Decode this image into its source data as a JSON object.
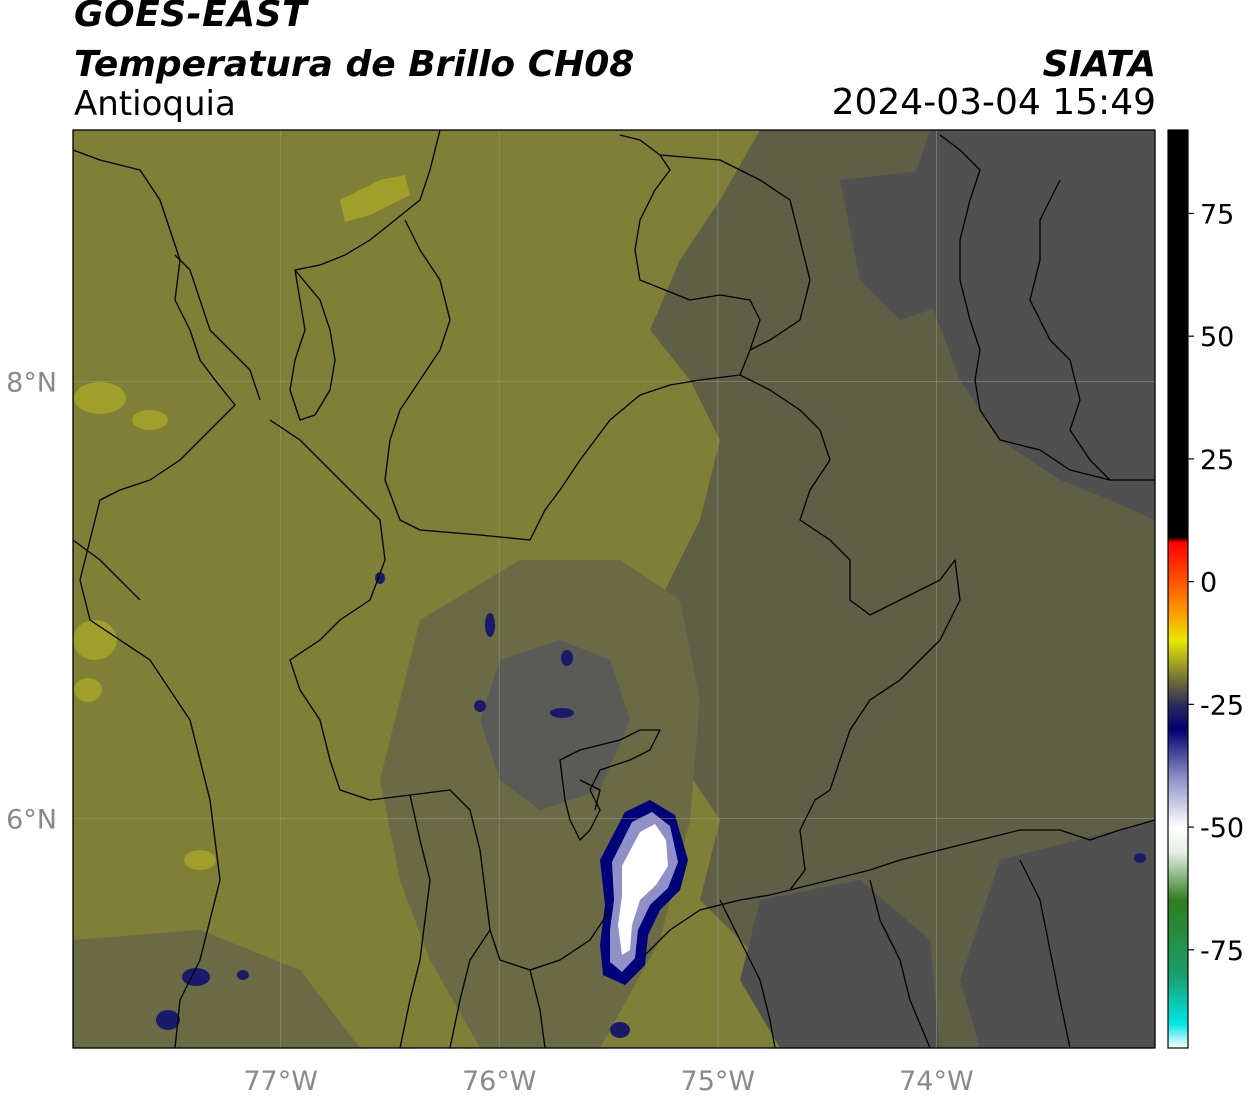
{
  "header": {
    "satellite": "GOES-EAST",
    "product": "Temperatura de Brillo CH08",
    "region": "Antioquia",
    "organization": "SIATA",
    "timestamp": "2024-03-04 15:49"
  },
  "map": {
    "lon_range": [
      -77.95,
      -73.0
    ],
    "lat_range": [
      4.95,
      9.15
    ],
    "lon_ticks": [
      {
        "value": -77,
        "label": "77°W"
      },
      {
        "value": -76,
        "label": "76°W"
      },
      {
        "value": -75,
        "label": "75°W"
      },
      {
        "value": -74,
        "label": "74°W"
      }
    ],
    "lat_ticks": [
      {
        "value": 8,
        "label": "8°N"
      },
      {
        "value": 6,
        "label": "6°N"
      }
    ],
    "gridlines": true,
    "colors": {
      "background_field": "#7f7f33",
      "bright_field": "#9d9d2c",
      "dark_field": "#555555",
      "cold_core": "#00007a",
      "coldest": "#ffffff",
      "boundary": "#000000"
    }
  },
  "colorbar": {
    "range": [
      -95,
      92
    ],
    "ticks": [
      {
        "value": 75,
        "label": "75"
      },
      {
        "value": 50,
        "label": "50"
      },
      {
        "value": 25,
        "label": "25"
      },
      {
        "value": 0,
        "label": "0"
      },
      {
        "value": -25,
        "label": "-25"
      },
      {
        "value": -50,
        "label": "-50"
      },
      {
        "value": -75,
        "label": "-75"
      }
    ],
    "stops": [
      {
        "value": -95,
        "color": "#ffffff"
      },
      {
        "value": -90,
        "color": "#00e5e5"
      },
      {
        "value": -80,
        "color": "#1a9e6a"
      },
      {
        "value": -65,
        "color": "#2f7d1f"
      },
      {
        "value": -55,
        "color": "#e8f0e8"
      },
      {
        "value": -50,
        "color": "#ffffff"
      },
      {
        "value": -40,
        "color": "#8f90c8"
      },
      {
        "value": -30,
        "color": "#000070"
      },
      {
        "value": -25,
        "color": "#2c2c5c"
      },
      {
        "value": -20,
        "color": "#707038"
      },
      {
        "value": -12,
        "color": "#e8e800"
      },
      {
        "value": -5,
        "color": "#ff8c00"
      },
      {
        "value": 4,
        "color": "#ff2a00"
      },
      {
        "value": 8,
        "color": "#ff0000"
      },
      {
        "value": 9,
        "color": "#000000"
      },
      {
        "value": 92,
        "color": "#000000"
      }
    ]
  }
}
